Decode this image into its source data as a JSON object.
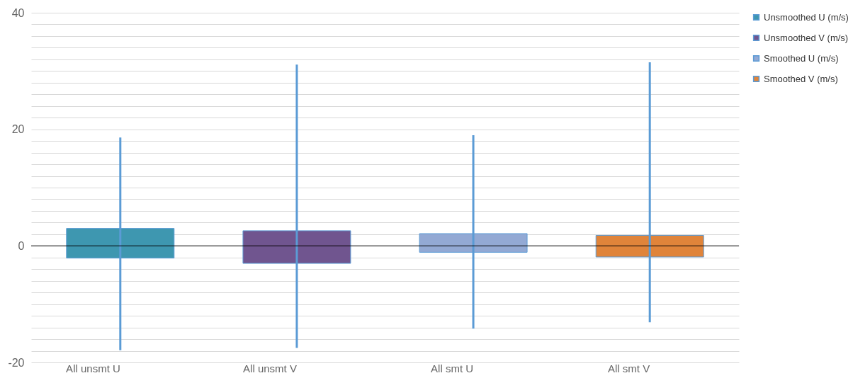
{
  "chart_data": {
    "type": "bar",
    "stacked": true,
    "categories": [
      "All unsmt U",
      "All unsmt V",
      "All smt U",
      "All smt V"
    ],
    "series": [
      {
        "name": "Unsmoothed U (m/s)",
        "color": "#3e97b0",
        "base": [
          -2.1,
          null,
          null,
          null
        ],
        "values": [
          5.1,
          null,
          null,
          null
        ],
        "errors": [
          [
            -17.9,
            18.6
          ],
          null,
          null,
          null
        ]
      },
      {
        "name": "Unsmoothed V (m/s)",
        "color": "#70558f",
        "base": [
          null,
          -3.0,
          null,
          null
        ],
        "values": [
          null,
          5.6,
          null,
          null
        ],
        "errors": [
          null,
          [
            -17.5,
            31.1
          ],
          null,
          null
        ]
      },
      {
        "name": "Smoothed U (m/s)",
        "color": "#93a9d4",
        "base": [
          null,
          null,
          -1.1,
          null
        ],
        "values": [
          null,
          null,
          3.2,
          null
        ],
        "errors": [
          null,
          null,
          [
            -14.2,
            19.0
          ],
          null
        ]
      },
      {
        "name": "Smoothed V (m/s)",
        "color": "#e0843a",
        "base": [
          null,
          null,
          null,
          -1.9
        ],
        "values": [
          null,
          null,
          null,
          3.7
        ],
        "errors": [
          null,
          null,
          null,
          [
            -13.1,
            31.5
          ]
        ]
      }
    ],
    "ylim": [
      -20,
      40
    ],
    "yticks": [
      -20,
      {
        "value": -18,
        "label": null
      },
      {
        "value": -16,
        "label": null
      },
      {
        "value": -14,
        "label": null
      },
      {
        "value": -12,
        "label": null
      },
      {
        "value": -10,
        "label": null
      },
      {
        "value": -8,
        "label": null
      },
      {
        "value": -6,
        "label": null
      },
      {
        "value": -4,
        "label": null
      },
      {
        "value": -2,
        "label": null
      },
      0,
      {
        "value": 2,
        "label": null
      },
      {
        "value": 4,
        "label": null
      },
      {
        "value": 6,
        "label": null
      },
      {
        "value": 8,
        "label": null
      },
      {
        "value": 10,
        "label": null
      },
      {
        "value": 12,
        "label": null
      },
      {
        "value": 14,
        "label": null
      },
      {
        "value": 16,
        "label": null
      },
      {
        "value": 18,
        "label": null
      },
      20,
      {
        "value": 22,
        "label": null
      },
      {
        "value": 24,
        "label": null
      },
      {
        "value": 26,
        "label": null
      },
      {
        "value": 28,
        "label": null
      },
      {
        "value": 30,
        "label": null
      },
      {
        "value": 32,
        "label": null
      },
      {
        "value": 34,
        "label": null
      },
      {
        "value": 36,
        "label": null
      },
      {
        "value": 38,
        "label": null
      },
      40
    ],
    "grid": true,
    "legend": "right",
    "ref_lines": [
      {
        "axis": "y",
        "value": 0,
        "color": "#000000"
      }
    ]
  }
}
